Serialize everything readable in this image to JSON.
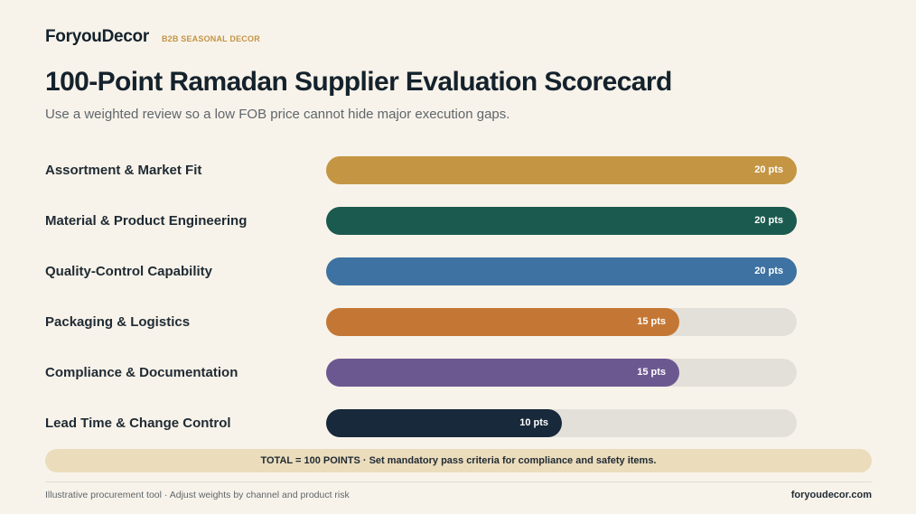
{
  "header": {
    "logo": "ForyouDecor",
    "tag": "B2B SEASONAL DECOR",
    "title": "100-Point Ramadan Supplier Evaluation Scorecard",
    "subtitle": "Use a weighted review so a low FOB price cannot hide major execution gaps."
  },
  "chart_data": {
    "type": "bar",
    "orientation": "horizontal",
    "categories": [
      "Assortment & Market Fit",
      "Material & Product Engineering",
      "Quality-Control Capability",
      "Packaging & Logistics",
      "Compliance & Documentation",
      "Lead Time & Change Control"
    ],
    "values": [
      20,
      20,
      20,
      15,
      15,
      10
    ],
    "value_labels": [
      "20 pts",
      "20 pts",
      "20 pts",
      "15 pts",
      "15 pts",
      "10 pts"
    ],
    "xlim": [
      0,
      20
    ],
    "colors": [
      "#c49644",
      "#1b5a4f",
      "#3e72a2",
      "#c47734",
      "#6c5891",
      "#17293a"
    ],
    "track_color": "#e3e0da",
    "grid": false
  },
  "banner": {
    "text": "TOTAL = 100 POINTS · Set mandatory pass criteria for compliance and safety items."
  },
  "footer": {
    "note": "Illustrative procurement tool · Adjust weights by channel and product risk",
    "site": "foryoudecor.com"
  }
}
